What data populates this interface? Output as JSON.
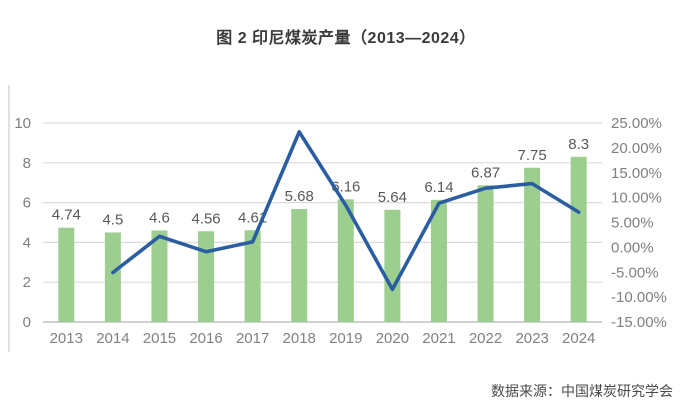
{
  "title": "图 2 印尼煤炭产量（2013—2024）",
  "source": "数据来源：中国煤炭研究学会",
  "colors": {
    "bar": "#9cce90",
    "line": "#2b5ea1",
    "gridline": "#dbdbdb",
    "axis_line": "#c0c0c0",
    "axis_text": "#808080",
    "data_label": "#595959",
    "chart_border": "#d6d6d6"
  },
  "chart_data": {
    "type": "bar+line",
    "title": "图 2 印尼煤炭产量（2013—2024）",
    "categories": [
      "2013",
      "2014",
      "2015",
      "2016",
      "2017",
      "2018",
      "2019",
      "2020",
      "2021",
      "2022",
      "2023",
      "2024"
    ],
    "series": [
      {
        "name": "production-bars",
        "type": "bar",
        "axis": "left",
        "labels": [
          "4.74",
          "4.5",
          "4.6",
          "4.56",
          "4.61",
          "5.68",
          "6.16",
          "5.64",
          "6.14",
          "6.87",
          "7.75",
          "8.3"
        ],
        "values": [
          4.74,
          4.5,
          4.6,
          4.56,
          4.61,
          5.68,
          6.16,
          5.64,
          6.14,
          6.87,
          7.75,
          8.3
        ]
      },
      {
        "name": "growth-rate-line",
        "type": "line",
        "axis": "right",
        "values_percent_estimated": [
          null,
          -5.06,
          2.22,
          -0.87,
          1.1,
          23.21,
          8.45,
          -8.44,
          8.87,
          11.89,
          12.81,
          7.1
        ]
      }
    ],
    "left_axis": {
      "range": [
        0,
        10
      ],
      "tick_labels": [
        "0",
        "2",
        "4",
        "6",
        "8",
        "10"
      ]
    },
    "right_axis": {
      "range_percent": [
        -15,
        25
      ],
      "tick_labels": [
        "25.00%",
        "20.00%",
        "15.00%",
        "10.00%",
        "5.00%",
        "0.00%",
        "-5.00%",
        "-10.00%",
        "-15.00%"
      ]
    },
    "grid": "horizontal-on",
    "legend": "none",
    "data_labels": "above-bars"
  }
}
